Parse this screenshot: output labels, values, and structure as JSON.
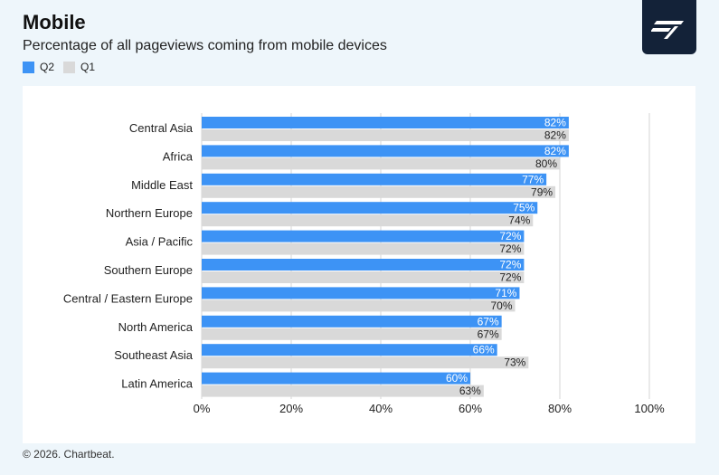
{
  "header": {
    "title": "Mobile",
    "subtitle": "Percentage of all pageviews coming from mobile devices"
  },
  "logo": {
    "icon": "chartbeat-logo-icon"
  },
  "footer": {
    "text": "© 2026. Chartbeat."
  },
  "colors": {
    "q2": "#3d93f5",
    "q1": "#d9d9d9",
    "background": "#eef6fb",
    "logo_bg": "#132238"
  },
  "chart_data": {
    "type": "bar",
    "orientation": "horizontal",
    "categories": [
      "Central Asia",
      "Africa",
      "Middle East",
      "Northern Europe",
      "Asia / Pacific",
      "Southern Europe",
      "Central / Eastern Europe",
      "North America",
      "Southeast Asia",
      "Latin America"
    ],
    "series": [
      {
        "name": "Q2",
        "values": [
          82,
          82,
          77,
          75,
          72,
          72,
          71,
          67,
          66,
          60
        ]
      },
      {
        "name": "Q1",
        "values": [
          82,
          80,
          79,
          74,
          72,
          72,
          70,
          67,
          73,
          63
        ]
      }
    ],
    "xlim": [
      0,
      100
    ],
    "xticks": [
      "0%",
      "20%",
      "40%",
      "60%",
      "80%",
      "100%"
    ],
    "value_suffix": "%",
    "grid": true,
    "legend_position": "top-left"
  }
}
